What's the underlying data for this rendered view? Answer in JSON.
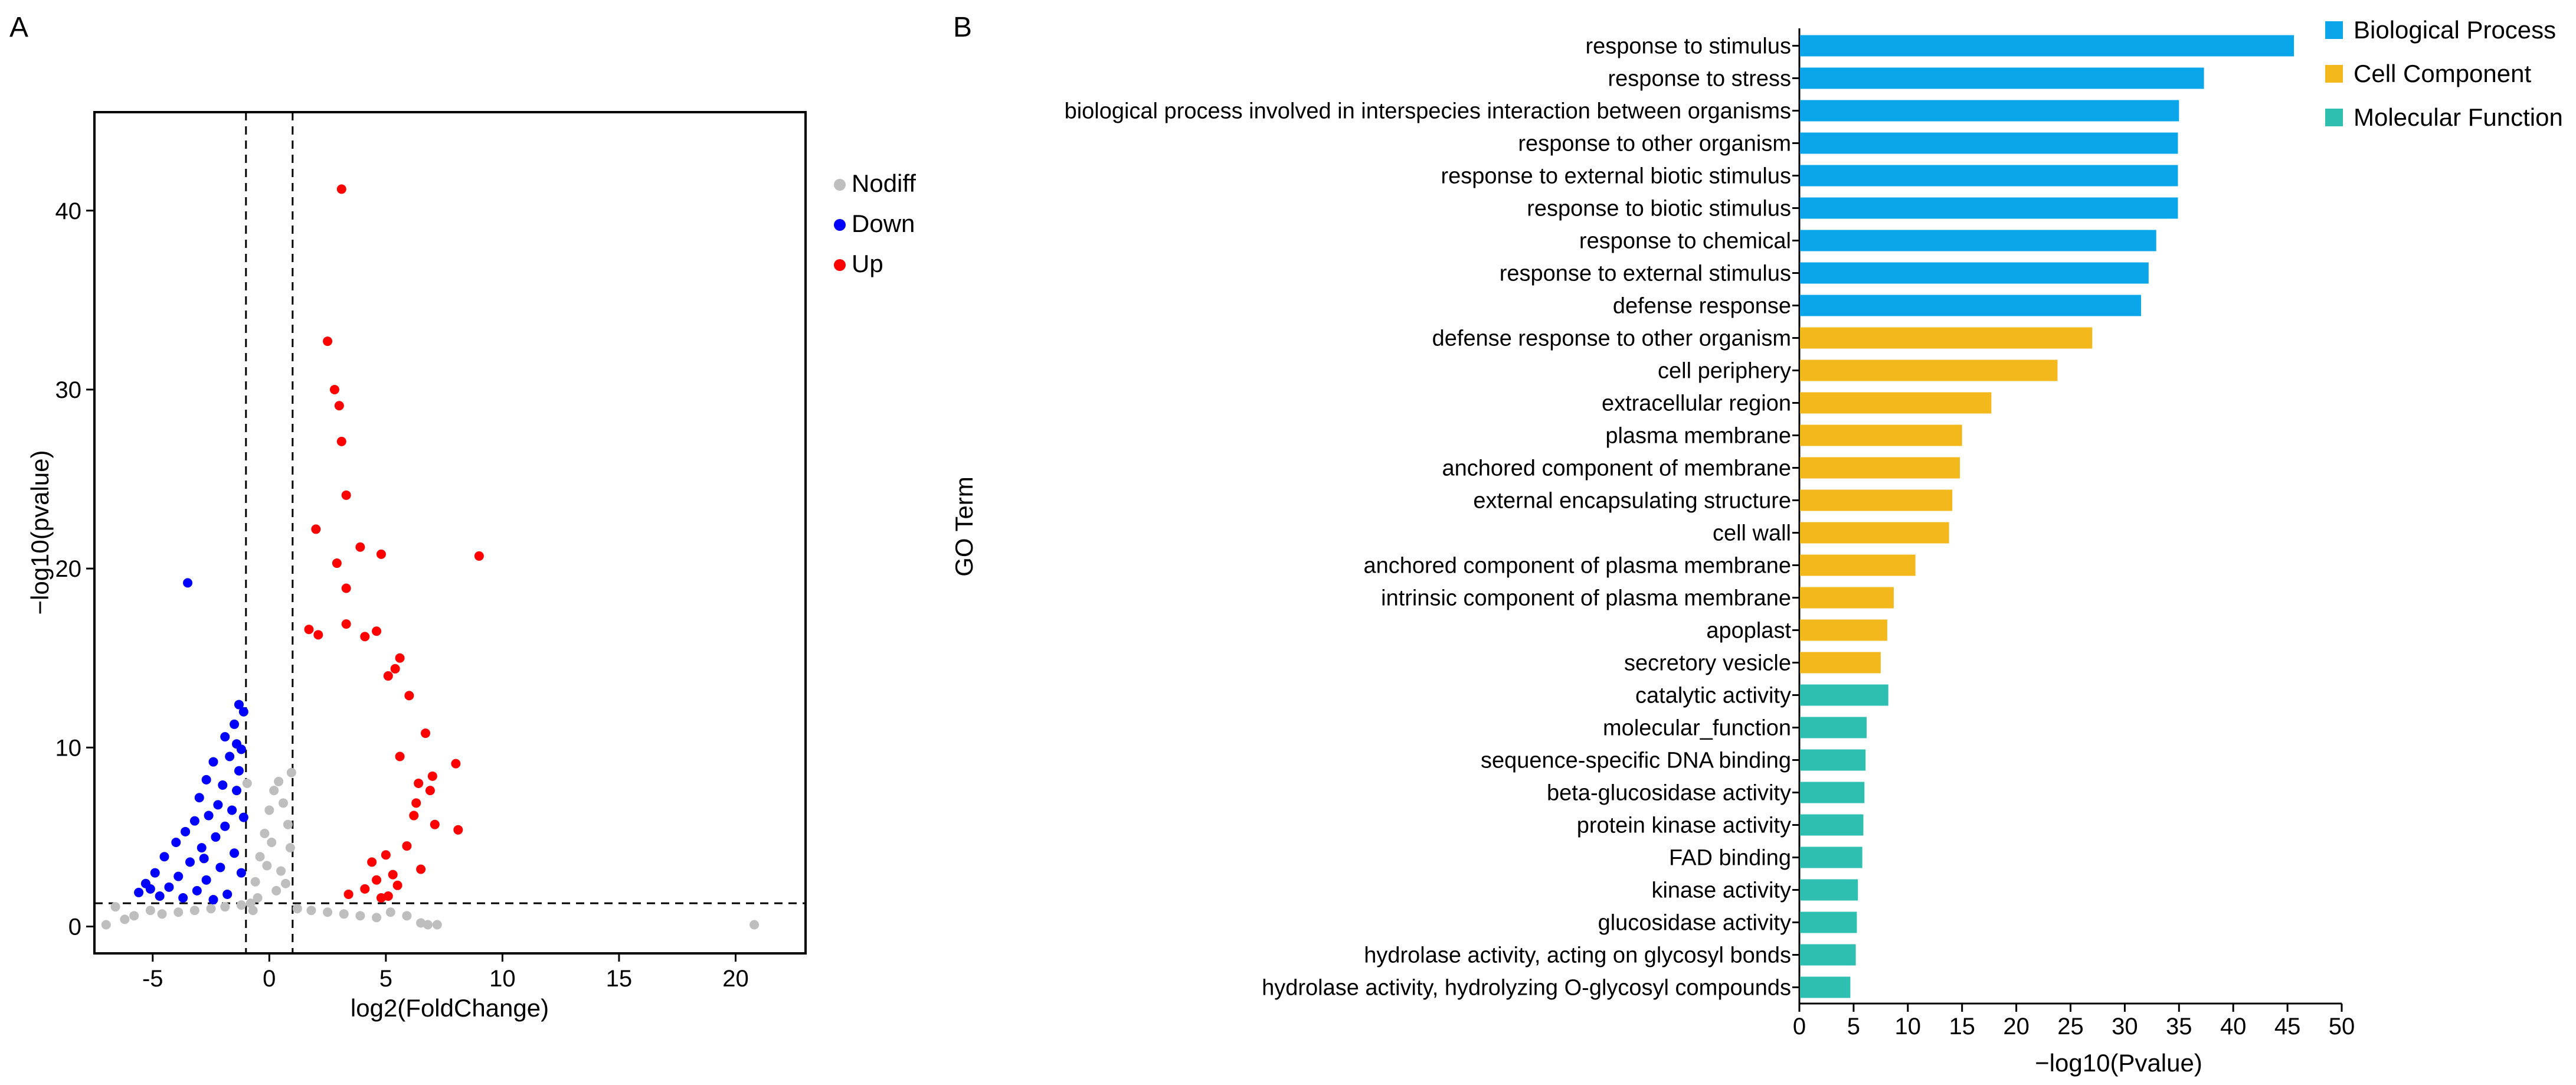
{
  "chart_data": [
    {
      "panel": "A",
      "type": "scatter",
      "title": "",
      "xlabel": "log2(FoldChange)",
      "ylabel": "−log10(pvalue)",
      "xlim": [
        -7.5,
        23
      ],
      "ylim": [
        -1.5,
        45.5
      ],
      "xticks": [
        -5,
        0,
        5,
        10,
        15,
        20
      ],
      "yticks": [
        0,
        10,
        20,
        30,
        40
      ],
      "xtick_labels": [
        "-5",
        "0",
        "5",
        "10",
        "15",
        "20"
      ],
      "ytick_labels": [
        "0",
        "10",
        "20",
        "30",
        "40"
      ],
      "thresholds": {
        "vlines": [
          -1,
          1
        ],
        "hline": 1.3
      },
      "legend": {
        "placement": "right",
        "entries": [
          {
            "name": "Nodiff",
            "color": "#bebebe"
          },
          {
            "name": "Down",
            "color": "#0000ff"
          },
          {
            "name": "Up",
            "color": "#ff0000"
          }
        ]
      },
      "series": [
        {
          "name": "Up",
          "color": "#ff0000",
          "points": [
            [
              3.1,
              41.2
            ],
            [
              2.5,
              32.7
            ],
            [
              2.8,
              30.0
            ],
            [
              3.0,
              29.1
            ],
            [
              3.1,
              27.1
            ],
            [
              3.3,
              24.1
            ],
            [
              2.0,
              22.2
            ],
            [
              3.9,
              21.2
            ],
            [
              2.9,
              20.3
            ],
            [
              4.8,
              20.8
            ],
            [
              9.0,
              20.7
            ],
            [
              3.3,
              18.9
            ],
            [
              1.7,
              16.6
            ],
            [
              2.1,
              16.3
            ],
            [
              3.3,
              16.9
            ],
            [
              4.1,
              16.2
            ],
            [
              4.6,
              16.5
            ],
            [
              5.6,
              15.0
            ],
            [
              5.4,
              14.4
            ],
            [
              5.1,
              14.0
            ],
            [
              6.0,
              12.9
            ],
            [
              6.7,
              10.8
            ],
            [
              5.6,
              9.5
            ],
            [
              8.0,
              9.1
            ],
            [
              7.0,
              8.4
            ],
            [
              6.4,
              8.0
            ],
            [
              6.9,
              7.6
            ],
            [
              6.3,
              6.9
            ],
            [
              6.2,
              6.2
            ],
            [
              7.1,
              5.7
            ],
            [
              8.1,
              5.4
            ],
            [
              5.9,
              4.5
            ],
            [
              5.0,
              4.0
            ],
            [
              4.4,
              3.6
            ],
            [
              6.5,
              3.2
            ],
            [
              5.3,
              2.9
            ],
            [
              4.6,
              2.6
            ],
            [
              5.5,
              2.3
            ],
            [
              4.1,
              2.1
            ],
            [
              3.4,
              1.8
            ],
            [
              5.1,
              1.7
            ],
            [
              4.8,
              1.6
            ]
          ]
        },
        {
          "name": "Down",
          "color": "#0000ff",
          "points": [
            [
              -3.5,
              19.2
            ],
            [
              -1.3,
              12.4
            ],
            [
              -1.1,
              12.0
            ],
            [
              -1.5,
              11.3
            ],
            [
              -1.9,
              10.6
            ],
            [
              -1.2,
              9.9
            ],
            [
              -1.7,
              9.5
            ],
            [
              -2.4,
              9.2
            ],
            [
              -1.3,
              8.7
            ],
            [
              -2.7,
              8.2
            ],
            [
              -2.0,
              7.9
            ],
            [
              -1.4,
              7.6
            ],
            [
              -3.0,
              7.2
            ],
            [
              -2.2,
              6.8
            ],
            [
              -1.6,
              6.5
            ],
            [
              -2.6,
              6.2
            ],
            [
              -3.2,
              5.9
            ],
            [
              -1.9,
              5.6
            ],
            [
              -3.6,
              5.3
            ],
            [
              -2.3,
              5.0
            ],
            [
              -4.0,
              4.7
            ],
            [
              -2.9,
              4.4
            ],
            [
              -1.5,
              4.1
            ],
            [
              -4.5,
              3.9
            ],
            [
              -3.4,
              3.6
            ],
            [
              -2.1,
              3.3
            ],
            [
              -4.9,
              3.0
            ],
            [
              -3.9,
              2.8
            ],
            [
              -2.7,
              2.6
            ],
            [
              -5.3,
              2.4
            ],
            [
              -4.3,
              2.2
            ],
            [
              -3.1,
              2.0
            ],
            [
              -5.6,
              1.9
            ],
            [
              -1.8,
              1.8
            ],
            [
              -4.7,
              1.7
            ],
            [
              -3.7,
              1.6
            ],
            [
              -2.4,
              1.5
            ],
            [
              -5.1,
              2.1
            ],
            [
              -1.2,
              3.0
            ],
            [
              -1.1,
              6.1
            ],
            [
              -1.4,
              10.2
            ],
            [
              -2.8,
              3.8
            ]
          ]
        },
        {
          "name": "Nodiff",
          "color": "#bebebe",
          "points": [
            [
              20.8,
              0.1
            ],
            [
              7.2,
              0.1
            ],
            [
              6.8,
              0.1
            ],
            [
              6.5,
              0.2
            ],
            [
              5.9,
              0.6
            ],
            [
              5.2,
              0.8
            ],
            [
              -5.8,
              0.6
            ],
            [
              -6.6,
              1.1
            ],
            [
              -5.1,
              0.9
            ],
            [
              -4.6,
              0.7
            ],
            [
              -3.9,
              0.8
            ],
            [
              -3.2,
              0.9
            ],
            [
              -2.5,
              1.0
            ],
            [
              -1.9,
              1.1
            ],
            [
              -1.2,
              1.2
            ],
            [
              -0.8,
              1.3
            ],
            [
              -0.6,
              2.5
            ],
            [
              -0.4,
              3.9
            ],
            [
              -0.2,
              5.2
            ],
            [
              0.0,
              6.5
            ],
            [
              0.2,
              7.6
            ],
            [
              0.4,
              8.1
            ],
            [
              0.6,
              6.9
            ],
            [
              0.8,
              5.7
            ],
            [
              0.9,
              4.4
            ],
            [
              0.5,
              3.1
            ],
            [
              0.3,
              2.0
            ],
            [
              -0.5,
              1.6
            ],
            [
              1.2,
              1.0
            ],
            [
              1.8,
              0.9
            ],
            [
              2.5,
              0.8
            ],
            [
              3.2,
              0.7
            ],
            [
              3.9,
              0.6
            ],
            [
              4.6,
              0.5
            ],
            [
              -7.0,
              0.1
            ],
            [
              -6.2,
              0.4
            ],
            [
              0.1,
              4.7
            ],
            [
              -0.1,
              3.4
            ],
            [
              0.7,
              2.4
            ],
            [
              -0.7,
              0.9
            ],
            [
              0.95,
              8.6
            ],
            [
              -0.95,
              8.0
            ]
          ]
        }
      ]
    },
    {
      "panel": "B",
      "type": "bar",
      "orientation": "horizontal",
      "title": "",
      "xlabel": "−log10(Pvalue)",
      "ylabel": "GO Term",
      "xlim": [
        0,
        50
      ],
      "xticks": [
        0,
        5,
        10,
        15,
        20,
        25,
        30,
        35,
        40,
        45,
        50
      ],
      "xtick_labels": [
        "0",
        "5",
        "10",
        "15",
        "20",
        "25",
        "30",
        "35",
        "40",
        "45",
        "50"
      ],
      "legend": {
        "placement": "top-right",
        "entries": [
          {
            "name": "Biological Process",
            "color": "#0aa6e9"
          },
          {
            "name": "Cell Component",
            "color": "#f2b81c"
          },
          {
            "name": "Molecular Function",
            "color": "#2ebfb0"
          }
        ]
      },
      "bars": [
        {
          "term": "response to stimulus",
          "value": 45.6,
          "category": "Biological Process"
        },
        {
          "term": "response to stress",
          "value": 37.3,
          "category": "Biological Process"
        },
        {
          "term": "biological process involved in interspecies interaction between organisms",
          "value": 35.0,
          "category": "Biological Process"
        },
        {
          "term": "response to other organism",
          "value": 34.9,
          "category": "Biological Process"
        },
        {
          "term": "response to external biotic stimulus",
          "value": 34.9,
          "category": "Biological Process"
        },
        {
          "term": "response to biotic stimulus",
          "value": 34.9,
          "category": "Biological Process"
        },
        {
          "term": "response to chemical",
          "value": 32.9,
          "category": "Biological Process"
        },
        {
          "term": "response to external stimulus",
          "value": 32.2,
          "category": "Biological Process"
        },
        {
          "term": "defense response",
          "value": 31.5,
          "category": "Biological Process"
        },
        {
          "term": "defense response to other organism",
          "value": 27.0,
          "category": "Cell Component"
        },
        {
          "term": "cell periphery",
          "value": 23.8,
          "category": "Cell Component"
        },
        {
          "term": "extracellular region",
          "value": 17.7,
          "category": "Cell Component"
        },
        {
          "term": "plasma membrane",
          "value": 15.0,
          "category": "Cell Component"
        },
        {
          "term": "anchored component of membrane",
          "value": 14.8,
          "category": "Cell Component"
        },
        {
          "term": "external encapsulating structure",
          "value": 14.1,
          "category": "Cell Component"
        },
        {
          "term": "cell wall",
          "value": 13.8,
          "category": "Cell Component"
        },
        {
          "term": "anchored component of plasma membrane",
          "value": 10.7,
          "category": "Cell Component"
        },
        {
          "term": "intrinsic component of plasma membrane",
          "value": 8.7,
          "category": "Cell Component"
        },
        {
          "term": "apoplast",
          "value": 8.1,
          "category": "Cell Component"
        },
        {
          "term": "secretory vesicle",
          "value": 7.5,
          "category": "Cell Component"
        },
        {
          "term": "catalytic activity",
          "value": 8.2,
          "category": "Molecular Function"
        },
        {
          "term": "molecular_function",
          "value": 6.2,
          "category": "Molecular Function"
        },
        {
          "term": "sequence-specific DNA binding",
          "value": 6.1,
          "category": "Molecular Function"
        },
        {
          "term": "beta-glucosidase activity",
          "value": 6.0,
          "category": "Molecular Function"
        },
        {
          "term": "protein kinase activity",
          "value": 5.9,
          "category": "Molecular Function"
        },
        {
          "term": "FAD binding",
          "value": 5.8,
          "category": "Molecular Function"
        },
        {
          "term": "kinase activity",
          "value": 5.4,
          "category": "Molecular Function"
        },
        {
          "term": "glucosidase activity",
          "value": 5.3,
          "category": "Molecular Function"
        },
        {
          "term": "hydrolase activity, acting on glycosyl bonds",
          "value": 5.2,
          "category": "Molecular Function"
        },
        {
          "term": "hydrolase activity, hydrolyzing O-glycosyl compounds",
          "value": 4.7,
          "category": "Molecular Function"
        }
      ]
    }
  ],
  "panel_labels": [
    "A",
    "B"
  ]
}
